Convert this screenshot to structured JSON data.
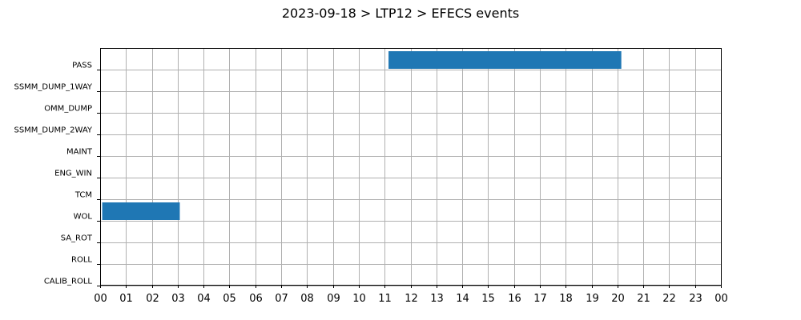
{
  "chart_data": {
    "type": "gantt",
    "title": "2023-09-18 > LTP12 > EFECS events",
    "xlim": [
      0,
      24
    ],
    "x_tick_labels": [
      "00",
      "01",
      "02",
      "03",
      "04",
      "05",
      "06",
      "07",
      "08",
      "09",
      "10",
      "11",
      "12",
      "13",
      "14",
      "15",
      "16",
      "17",
      "18",
      "19",
      "20",
      "21",
      "22",
      "23",
      "00"
    ],
    "categories": [
      "PASS",
      "SSMM_DUMP_1WAY",
      "OMM_DUMP",
      "SSMM_DUMP_2WAY",
      "MAINT",
      "ENG_WIN",
      "TCM",
      "WOL",
      "SA_ROT",
      "ROLL",
      "CALIB_ROLL"
    ],
    "grid": true,
    "bar_color": "#1f77b4",
    "events": [
      {
        "category": "PASS",
        "start": 11.15,
        "end": 20.15
      },
      {
        "category": "WOL",
        "start": 0.08,
        "end": 3.08
      }
    ]
  }
}
